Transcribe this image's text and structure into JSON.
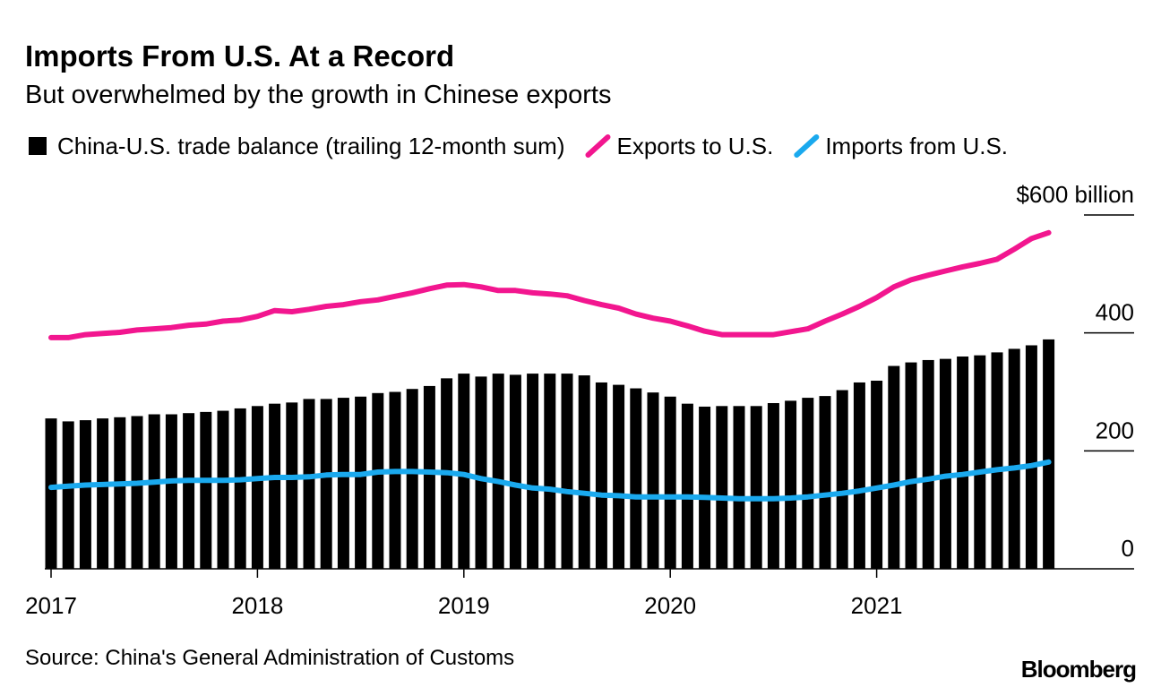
{
  "chart_data": {
    "type": "combo",
    "title": "Imports From U.S. At a Record",
    "subtitle": "But overwhelmed by the growth in Chinese exports",
    "source": "Source: China's General Administration of Customs",
    "brand": "Bloomberg",
    "categories": [
      "2017",
      null,
      null,
      null,
      null,
      null,
      null,
      null,
      null,
      null,
      null,
      null,
      "2018",
      null,
      null,
      null,
      null,
      null,
      null,
      null,
      null,
      null,
      null,
      null,
      "2019",
      null,
      null,
      null,
      null,
      null,
      null,
      null,
      null,
      null,
      null,
      null,
      "2020",
      null,
      null,
      null,
      null,
      null,
      null,
      null,
      null,
      null,
      null,
      null,
      "2021",
      null,
      null,
      null,
      null,
      null,
      null,
      null,
      null,
      null,
      null
    ],
    "ylim": [
      0,
      600
    ],
    "yticks": [
      0,
      200,
      400,
      {
        "value": 600,
        "label": "$600 billion"
      }
    ],
    "series": [
      {
        "name": "China-U.S. trade balance (trailing 12-month sum)",
        "type": "bar",
        "color": "#000000",
        "values": [
          255,
          250,
          252,
          255,
          257,
          259,
          262,
          262,
          264,
          266,
          268,
          272,
          276,
          280,
          282,
          288,
          288,
          290,
          292,
          298,
          300,
          305,
          310,
          323,
          331,
          326,
          331,
          329,
          331,
          331,
          331,
          328,
          316,
          312,
          306,
          299,
          292,
          280,
          275,
          276,
          276,
          276,
          281,
          285,
          290,
          293,
          303,
          316,
          319,
          344,
          350,
          354,
          356,
          360,
          362,
          367,
          373,
          379,
          389
        ]
      },
      {
        "name": "Exports to U.S.",
        "type": "line",
        "color": "#f2168f",
        "values": [
          392,
          392,
          397,
          399,
          401,
          405,
          407,
          409,
          413,
          415,
          420,
          422,
          428,
          438,
          436,
          440,
          445,
          448,
          453,
          456,
          462,
          468,
          475,
          481,
          482,
          478,
          472,
          472,
          468,
          466,
          463,
          455,
          448,
          442,
          432,
          425,
          420,
          412,
          403,
          397,
          397,
          397,
          397,
          402,
          407,
          420,
          432,
          445,
          460,
          478,
          490,
          498,
          505,
          512,
          518,
          525,
          542,
          560,
          570
        ]
      },
      {
        "name": "Imports from U.S.",
        "type": "line",
        "color": "#1aa9ee",
        "values": [
          138,
          140,
          142,
          143,
          144,
          145,
          147,
          149,
          150,
          150,
          150,
          151,
          153,
          155,
          155,
          156,
          159,
          160,
          160,
          164,
          165,
          165,
          164,
          163,
          160,
          153,
          148,
          142,
          137,
          135,
          131,
          128,
          125,
          124,
          122,
          122,
          122,
          122,
          121,
          120,
          119,
          119,
          119,
          120,
          122,
          125,
          128,
          132,
          137,
          142,
          148,
          152,
          157,
          160,
          164,
          168,
          171,
          175,
          181
        ]
      }
    ]
  }
}
